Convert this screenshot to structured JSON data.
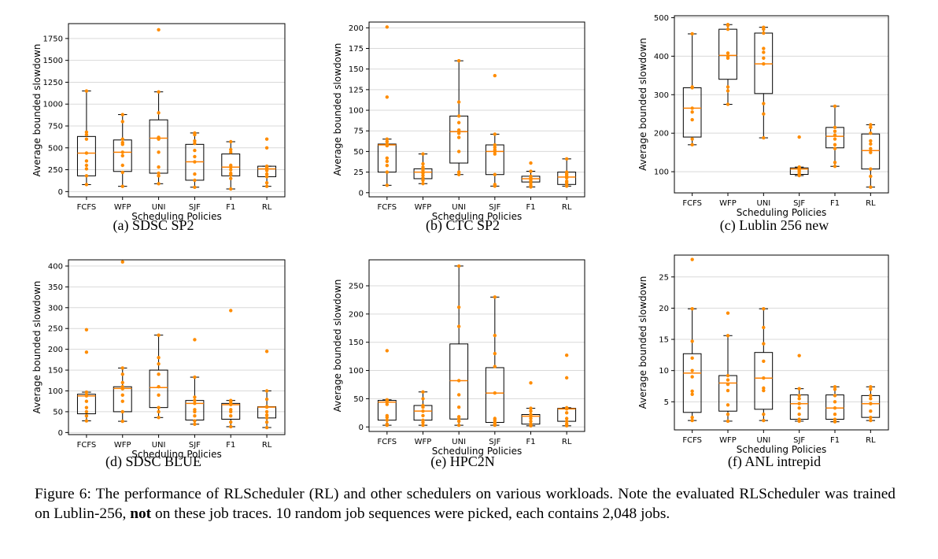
{
  "caption": {
    "label": "Figure 6:",
    "text_1": "The performance of RLScheduler (RL) and other schedulers on various workloads. Note the evaluated RLScheduler was trained on Lublin-256,",
    "bold": "not",
    "text_2": "on these job traces. 10 random job sequences were picked, each contains 2,048 jobs."
  },
  "colors": {
    "box": "#000000",
    "median": "#ff8000",
    "points": "#ff8c00",
    "grid": "#d9d9d9"
  },
  "chart_data": [
    {
      "type": "box",
      "subcaption": "(a) SDSC SP2",
      "xlabel": "Scheduling Policies",
      "ylabel": "Average bounded slowdown",
      "ylim": [
        -60,
        1920
      ],
      "yticks": [
        0,
        250,
        500,
        750,
        1000,
        1250,
        1500,
        1750
      ],
      "grid": true,
      "categories": [
        "FCFS",
        "WFP",
        "UNI",
        "SJF",
        "F1",
        "RL"
      ],
      "boxes": [
        {
          "whislo": 80,
          "q1": 180,
          "med": 440,
          "q3": 630,
          "whishi": 1150
        },
        {
          "whislo": 60,
          "q1": 230,
          "med": 450,
          "q3": 590,
          "whishi": 880
        },
        {
          "whislo": 90,
          "q1": 210,
          "med": 610,
          "q3": 820,
          "whishi": 1140
        },
        {
          "whislo": 50,
          "q1": 130,
          "med": 340,
          "q3": 540,
          "whishi": 670
        },
        {
          "whislo": 30,
          "q1": 180,
          "med": 280,
          "q3": 430,
          "whishi": 570
        },
        {
          "whislo": 60,
          "q1": 170,
          "med": 260,
          "q3": 290,
          "whishi": 290
        }
      ],
      "points": [
        [
          80,
          180,
          260,
          300,
          350,
          440,
          600,
          650,
          680,
          1150
        ],
        [
          60,
          220,
          300,
          410,
          450,
          540,
          560,
          600,
          800,
          880
        ],
        [
          90,
          180,
          210,
          280,
          450,
          600,
          620,
          900,
          1140,
          1850
        ],
        [
          50,
          130,
          200,
          340,
          400,
          470,
          550,
          580,
          650,
          670
        ],
        [
          30,
          150,
          190,
          210,
          250,
          280,
          300,
          450,
          480,
          570
        ],
        [
          60,
          100,
          170,
          200,
          240,
          260,
          280,
          290,
          500,
          600
        ]
      ]
    },
    {
      "type": "box",
      "subcaption": "(b) CTC SP2",
      "xlabel": "Scheduling Policies",
      "ylabel": "Average bounded slowdown",
      "ylim": [
        -5,
        207
      ],
      "yticks": [
        0,
        25,
        50,
        75,
        100,
        125,
        150,
        175,
        200
      ],
      "grid": true,
      "categories": [
        "FCFS",
        "WFP",
        "UNI",
        "SJF",
        "F1",
        "RL"
      ],
      "boxes": [
        {
          "whislo": 9,
          "q1": 25,
          "med": 58,
          "q3": 59,
          "whishi": 65
        },
        {
          "whislo": 11,
          "q1": 17,
          "med": 25,
          "q3": 29,
          "whishi": 47
        },
        {
          "whislo": 22,
          "q1": 36,
          "med": 74,
          "q3": 93,
          "whishi": 160
        },
        {
          "whislo": 8,
          "q1": 22,
          "med": 50,
          "q3": 58,
          "whishi": 71
        },
        {
          "whislo": 7,
          "q1": 13,
          "med": 17,
          "q3": 20,
          "whishi": 26
        },
        {
          "whislo": 8,
          "q1": 10,
          "med": 19,
          "q3": 25,
          "whishi": 41
        }
      ],
      "points": [
        [
          9,
          25,
          33,
          38,
          42,
          57,
          59,
          62,
          65,
          116,
          201
        ],
        [
          11,
          15,
          18,
          21,
          24,
          27,
          29,
          31,
          35,
          47
        ],
        [
          22,
          25,
          50,
          67,
          72,
          76,
          85,
          93,
          110,
          160
        ],
        [
          8,
          10,
          22,
          47,
          50,
          52,
          55,
          58,
          71,
          142
        ],
        [
          7,
          9,
          12,
          14,
          16,
          17,
          18,
          20,
          26,
          36
        ],
        [
          8,
          9,
          12,
          14,
          18,
          20,
          22,
          24,
          25,
          41
        ]
      ]
    },
    {
      "type": "box",
      "subcaption": "(c) Lublin 256 new",
      "xlabel": "Scheduling Policies",
      "ylabel": "Average bounded slowdown",
      "ylim": [
        45,
        505
      ],
      "yticks": [
        100,
        200,
        300,
        400,
        500
      ],
      "grid": true,
      "categories": [
        "FCFS",
        "WFP",
        "UNI",
        "SJF",
        "F1",
        "RL"
      ],
      "boxes": [
        {
          "whislo": 170,
          "q1": 190,
          "med": 265,
          "q3": 318,
          "whishi": 458
        },
        {
          "whislo": 275,
          "q1": 340,
          "med": 402,
          "q3": 470,
          "whishi": 482
        },
        {
          "whislo": 188,
          "q1": 303,
          "med": 380,
          "q3": 460,
          "whishi": 475
        },
        {
          "whislo": 90,
          "q1": 93,
          "med": 107,
          "q3": 110,
          "whishi": 112
        },
        {
          "whislo": 114,
          "q1": 162,
          "med": 192,
          "q3": 215,
          "whishi": 270
        },
        {
          "whislo": 60,
          "q1": 107,
          "med": 155,
          "q3": 198,
          "whishi": 222
        }
      ],
      "points": [
        [
          170,
          185,
          235,
          255,
          265,
          318,
          320,
          458
        ],
        [
          275,
          310,
          320,
          395,
          400,
          408,
          470,
          480,
          482
        ],
        [
          188,
          250,
          277,
          380,
          395,
          410,
          420,
          460,
          470,
          475
        ],
        [
          90,
          93,
          95,
          100,
          104,
          107,
          110,
          112,
          190
        ],
        [
          114,
          124,
          160,
          170,
          185,
          195,
          205,
          215,
          270
        ],
        [
          60,
          88,
          107,
          150,
          160,
          172,
          180,
          200,
          215,
          222
        ]
      ]
    },
    {
      "type": "box",
      "subcaption": "(d) SDSC BLUE",
      "xlabel": "Scheduling Policies",
      "ylabel": "Average bounded slowdown",
      "ylim": [
        -5,
        415
      ],
      "yticks": [
        0,
        50,
        100,
        150,
        200,
        250,
        300,
        350,
        400
      ],
      "grid": true,
      "categories": [
        "FCFS",
        "WFP",
        "UNI",
        "SJF",
        "F1",
        "RL"
      ],
      "boxes": [
        {
          "whislo": 28,
          "q1": 45,
          "med": 88,
          "q3": 92,
          "whishi": 97
        },
        {
          "whislo": 27,
          "q1": 50,
          "med": 106,
          "q3": 110,
          "whishi": 155
        },
        {
          "whislo": 36,
          "q1": 60,
          "med": 108,
          "q3": 150,
          "whishi": 234
        },
        {
          "whislo": 20,
          "q1": 30,
          "med": 70,
          "q3": 77,
          "whishi": 133
        },
        {
          "whislo": 14,
          "q1": 32,
          "med": 67,
          "q3": 70,
          "whishi": 77
        },
        {
          "whislo": 12,
          "q1": 35,
          "med": 61,
          "q3": 62,
          "whishi": 100
        }
      ],
      "points": [
        [
          28,
          40,
          50,
          60,
          75,
          88,
          90,
          97,
          193,
          247
        ],
        [
          27,
          50,
          75,
          90,
          105,
          110,
          120,
          140,
          155,
          410
        ],
        [
          36,
          50,
          60,
          90,
          110,
          140,
          165,
          180,
          234
        ],
        [
          20,
          28,
          40,
          50,
          55,
          70,
          77,
          85,
          133,
          223
        ],
        [
          14,
          25,
          40,
          50,
          55,
          67,
          70,
          75,
          77,
          293
        ],
        [
          12,
          25,
          35,
          42,
          50,
          61,
          62,
          80,
          100,
          195
        ]
      ]
    },
    {
      "type": "box",
      "subcaption": "(e) HPC2N",
      "xlabel": "Scheduling Policies",
      "ylabel": "Average bounded slowdown",
      "ylim": [
        -8,
        296
      ],
      "yticks": [
        0,
        50,
        100,
        150,
        200,
        250
      ],
      "grid": true,
      "categories": [
        "FCFS",
        "WFP",
        "UNI",
        "SJF",
        "F1",
        "RL"
      ],
      "boxes": [
        {
          "whislo": 3,
          "q1": 12,
          "med": 44,
          "q3": 47,
          "whishi": 48
        },
        {
          "whislo": 3,
          "q1": 12,
          "med": 28,
          "q3": 38,
          "whishi": 62
        },
        {
          "whislo": 3,
          "q1": 14,
          "med": 82,
          "q3": 147,
          "whishi": 285
        },
        {
          "whislo": 3,
          "q1": 8,
          "med": 60,
          "q3": 105,
          "whishi": 230
        },
        {
          "whislo": 2,
          "q1": 5,
          "med": 19,
          "q3": 22,
          "whishi": 33
        },
        {
          "whislo": 2,
          "q1": 10,
          "med": 32,
          "q3": 33,
          "whishi": 34
        }
      ],
      "points": [
        [
          3,
          5,
          12,
          17,
          20,
          40,
          44,
          46,
          48,
          135
        ],
        [
          3,
          8,
          12,
          20,
          28,
          35,
          38,
          50,
          62
        ],
        [
          3,
          10,
          14,
          18,
          35,
          57,
          82,
          178,
          212,
          285
        ],
        [
          3,
          5,
          8,
          12,
          15,
          60,
          107,
          130,
          162,
          230
        ],
        [
          2,
          4,
          5,
          10,
          15,
          19,
          22,
          28,
          33,
          78
        ],
        [
          2,
          5,
          10,
          15,
          25,
          32,
          33,
          34,
          87,
          127
        ]
      ]
    },
    {
      "type": "box",
      "subcaption": "(f) ANL intrepid",
      "xlabel": "Scheduling Policies",
      "ylabel": "Average bounded slowdown",
      "ylim": [
        0.5,
        28.5
      ],
      "yticks": [
        5,
        10,
        15,
        20,
        25
      ],
      "grid": true,
      "categories": [
        "FCFS",
        "WFP",
        "UNI",
        "SJF",
        "F1",
        "RL"
      ],
      "boxes": [
        {
          "whislo": 2.0,
          "q1": 3.3,
          "med": 9.6,
          "q3": 12.7,
          "whishi": 19.9
        },
        {
          "whislo": 1.9,
          "q1": 3.5,
          "med": 8.0,
          "q3": 9.2,
          "whishi": 15.6
        },
        {
          "whislo": 2.0,
          "q1": 3.8,
          "med": 8.8,
          "q3": 12.9,
          "whishi": 19.9
        },
        {
          "whislo": 1.9,
          "q1": 2.2,
          "med": 4.7,
          "q3": 6.1,
          "whishi": 7.1
        },
        {
          "whislo": 1.8,
          "q1": 2.2,
          "med": 4.0,
          "q3": 6.1,
          "whishi": 7.4
        },
        {
          "whislo": 2.0,
          "q1": 2.5,
          "med": 4.7,
          "q3": 6.0,
          "whishi": 7.4
        }
      ],
      "points": [
        [
          2.0,
          2.5,
          6.2,
          6.7,
          9.0,
          10.0,
          12.0,
          14.7,
          19.9,
          27.8
        ],
        [
          1.9,
          3.0,
          4.5,
          6.8,
          7.8,
          8.5,
          9.2,
          15.6,
          19.2
        ],
        [
          2.0,
          3.0,
          6.8,
          7.2,
          8.8,
          11.5,
          14.3,
          16.9,
          19.9
        ],
        [
          1.9,
          2.2,
          3.0,
          4.0,
          4.7,
          5.5,
          6.0,
          7.1,
          12.4
        ],
        [
          1.8,
          2.2,
          3.0,
          4.0,
          5.0,
          6.0,
          7.0,
          7.4
        ],
        [
          2.0,
          2.5,
          3.5,
          4.7,
          5.5,
          6.0,
          7.0,
          7.4
        ]
      ]
    }
  ]
}
